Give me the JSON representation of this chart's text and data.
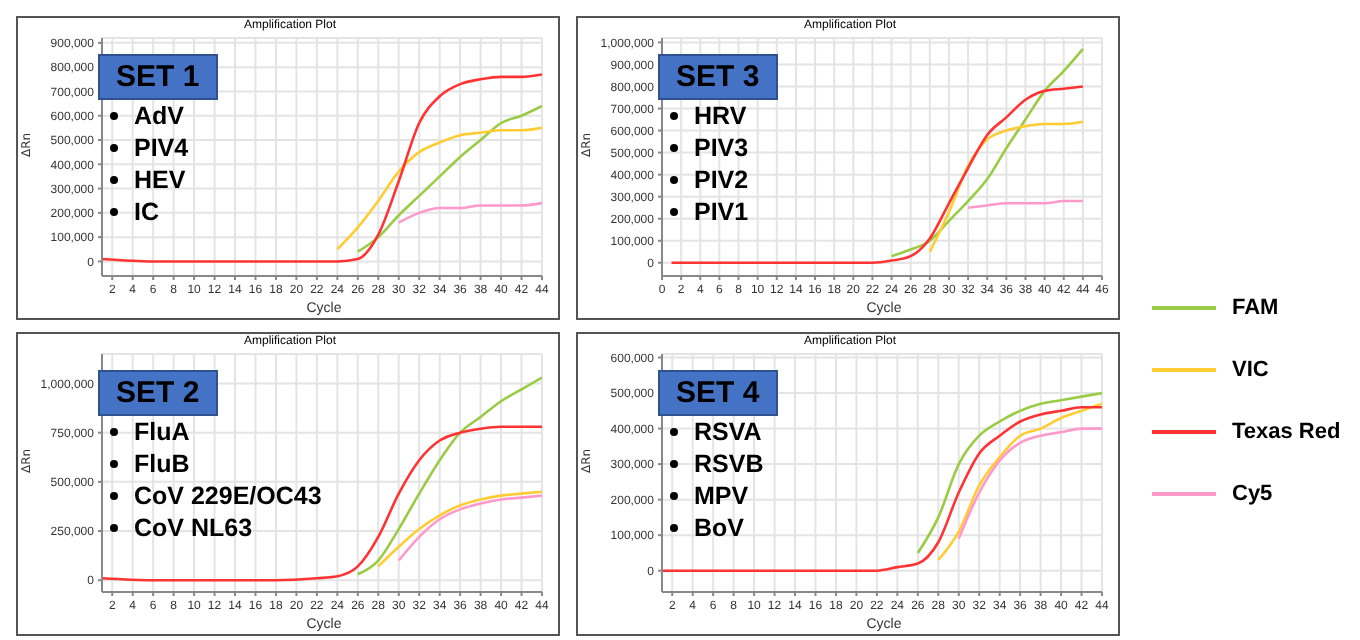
{
  "chart_data": [
    {
      "type": "line",
      "title": "Amplification Plot",
      "xlabel": "Cycle",
      "ylabel": "ΔRn",
      "annotations": [
        "SET 1",
        "AdV",
        "PIV4",
        "HEV",
        "IC"
      ],
      "x": [
        1,
        6,
        12,
        18,
        22,
        24,
        26,
        28,
        30,
        32,
        34,
        36,
        38,
        40,
        42,
        44
      ],
      "xlim": [
        1,
        44
      ],
      "xticks": [
        2,
        4,
        6,
        8,
        10,
        12,
        14,
        16,
        18,
        20,
        22,
        24,
        26,
        28,
        30,
        32,
        34,
        36,
        38,
        40,
        42,
        44
      ],
      "ylim": [
        -60000,
        920000
      ],
      "yticks": [
        {
          "value": 0,
          "label": "0"
        },
        {
          "value": 100000,
          "label": "100,000"
        },
        {
          "value": 200000,
          "label": "200,000"
        },
        {
          "value": 300000,
          "label": "300,000"
        },
        {
          "value": 400000,
          "label": "400,000"
        },
        {
          "value": 500000,
          "label": "500,000"
        },
        {
          "value": 600000,
          "label": "600,000"
        },
        {
          "value": 700000,
          "label": "700,000"
        },
        {
          "value": 800000,
          "label": "800,000"
        },
        {
          "value": 900000,
          "label": "900,000"
        }
      ],
      "grid": true,
      "legend": "right",
      "marker": "none",
      "line_style": "solid",
      "series": [
        {
          "name": "FAM",
          "color": "#99cc44",
          "values": [
            null,
            null,
            null,
            null,
            null,
            null,
            40000,
            100000,
            190000,
            270000,
            350000,
            430000,
            500000,
            570000,
            600000,
            640000
          ]
        },
        {
          "name": "VIC",
          "color": "#ffcc33",
          "values": [
            null,
            null,
            null,
            null,
            null,
            50000,
            140000,
            250000,
            370000,
            450000,
            490000,
            520000,
            530000,
            540000,
            540000,
            550000
          ]
        },
        {
          "name": "Texas Red",
          "color": "#ff3333",
          "values": [
            10000,
            0,
            0,
            0,
            0,
            0,
            10000,
            110000,
            330000,
            570000,
            680000,
            730000,
            750000,
            760000,
            760000,
            770000
          ]
        },
        {
          "name": "Cy5",
          "color": "#ff99cc",
          "values": [
            null,
            null,
            null,
            null,
            null,
            null,
            null,
            null,
            160000,
            200000,
            220000,
            220000,
            230000,
            230000,
            230000,
            240000
          ]
        }
      ]
    },
    {
      "type": "line",
      "title": "Amplification Plot",
      "xlabel": "Cycle",
      "ylabel": "ΔRn",
      "annotations": [
        "SET 3",
        "HRV",
        "PIV3",
        "PIV2",
        "PIV1"
      ],
      "x": [
        1,
        6,
        12,
        18,
        22,
        24,
        26,
        28,
        30,
        32,
        34,
        36,
        38,
        40,
        42,
        44
      ],
      "xlim": [
        0,
        46
      ],
      "xticks": [
        0,
        2,
        4,
        6,
        8,
        10,
        12,
        14,
        16,
        18,
        20,
        22,
        24,
        26,
        28,
        30,
        32,
        34,
        36,
        38,
        40,
        42,
        44,
        46
      ],
      "ylim": [
        -60000,
        1020000
      ],
      "yticks": [
        {
          "value": 0,
          "label": "0"
        },
        {
          "value": 100000,
          "label": "100,000"
        },
        {
          "value": 200000,
          "label": "200,000"
        },
        {
          "value": 300000,
          "label": "300,000"
        },
        {
          "value": 400000,
          "label": "400,000"
        },
        {
          "value": 500000,
          "label": "500,000"
        },
        {
          "value": 600000,
          "label": "600,000"
        },
        {
          "value": 700000,
          "label": "700,000"
        },
        {
          "value": 800000,
          "label": "800,000"
        },
        {
          "value": 900000,
          "label": "900,000"
        },
        {
          "value": 1000000,
          "label": "1,000,000"
        }
      ],
      "grid": true,
      "marker": "none",
      "line_style": "solid",
      "series": [
        {
          "name": "FAM",
          "color": "#99cc44",
          "values": [
            null,
            null,
            null,
            null,
            null,
            30000,
            60000,
            100000,
            190000,
            280000,
            380000,
            520000,
            650000,
            780000,
            870000,
            970000
          ]
        },
        {
          "name": "VIC",
          "color": "#ffcc33",
          "values": [
            null,
            null,
            null,
            null,
            null,
            null,
            null,
            50000,
            230000,
            440000,
            560000,
            600000,
            620000,
            630000,
            630000,
            640000
          ]
        },
        {
          "name": "Texas Red",
          "color": "#ff3333",
          "values": [
            0,
            0,
            0,
            0,
            0,
            10000,
            30000,
            110000,
            270000,
            430000,
            580000,
            660000,
            740000,
            780000,
            790000,
            800000
          ]
        },
        {
          "name": "Cy5",
          "color": "#ff99cc",
          "values": [
            null,
            null,
            null,
            null,
            null,
            null,
            null,
            null,
            null,
            250000,
            260000,
            270000,
            270000,
            270000,
            280000,
            280000
          ]
        }
      ]
    },
    {
      "type": "line",
      "title": "Amplification Plot",
      "xlabel": "Cycle",
      "ylabel": "ΔRn",
      "annotations": [
        "SET 2",
        "FluA",
        "FluB",
        "CoV 229E/OC43",
        "CoV NL63"
      ],
      "x": [
        1,
        6,
        12,
        18,
        22,
        24,
        26,
        28,
        30,
        32,
        34,
        36,
        38,
        40,
        42,
        44
      ],
      "xlim": [
        1,
        44
      ],
      "xticks": [
        2,
        4,
        6,
        8,
        10,
        12,
        14,
        16,
        18,
        20,
        22,
        24,
        26,
        28,
        30,
        32,
        34,
        36,
        38,
        40,
        42,
        44
      ],
      "ylim": [
        -60000,
        1150000
      ],
      "yticks": [
        {
          "value": 0,
          "label": "0"
        },
        {
          "value": 250000,
          "label": "250,000"
        },
        {
          "value": 500000,
          "label": "500,000"
        },
        {
          "value": 750000,
          "label": "750,000"
        },
        {
          "value": 1000000,
          "label": "1,000,000"
        }
      ],
      "grid": true,
      "marker": "none",
      "line_style": "solid",
      "series": [
        {
          "name": "FAM",
          "color": "#99cc44",
          "values": [
            null,
            null,
            null,
            null,
            null,
            null,
            30000,
            100000,
            260000,
            440000,
            610000,
            750000,
            830000,
            910000,
            970000,
            1030000
          ]
        },
        {
          "name": "VIC",
          "color": "#ffcc33",
          "values": [
            null,
            null,
            null,
            null,
            null,
            null,
            null,
            70000,
            170000,
            260000,
            330000,
            380000,
            410000,
            430000,
            440000,
            450000
          ]
        },
        {
          "name": "Texas Red",
          "color": "#ff3333",
          "values": [
            10000,
            0,
            0,
            0,
            10000,
            20000,
            70000,
            220000,
            440000,
            610000,
            710000,
            750000,
            770000,
            780000,
            780000,
            780000
          ]
        },
        {
          "name": "Cy5",
          "color": "#ff99cc",
          "values": [
            null,
            null,
            null,
            null,
            null,
            null,
            null,
            null,
            100000,
            220000,
            310000,
            360000,
            390000,
            410000,
            420000,
            430000
          ]
        }
      ]
    },
    {
      "type": "line",
      "title": "Amplification Plot",
      "xlabel": "Cycle",
      "ylabel": "ΔRn",
      "annotations": [
        "SET 4",
        "RSVA",
        "RSVB",
        "MPV",
        "BoV"
      ],
      "x": [
        1,
        6,
        12,
        18,
        22,
        24,
        26,
        28,
        30,
        32,
        34,
        36,
        38,
        40,
        42,
        44
      ],
      "xlim": [
        1,
        44
      ],
      "xticks": [
        2,
        4,
        6,
        8,
        10,
        12,
        14,
        16,
        18,
        20,
        22,
        24,
        26,
        28,
        30,
        32,
        34,
        36,
        38,
        40,
        42,
        44
      ],
      "ylim": [
        -60000,
        610000
      ],
      "yticks": [
        {
          "value": 0,
          "label": "0"
        },
        {
          "value": 100000,
          "label": "100,000"
        },
        {
          "value": 200000,
          "label": "200,000"
        },
        {
          "value": 300000,
          "label": "300,000"
        },
        {
          "value": 400000,
          "label": "400,000"
        },
        {
          "value": 500000,
          "label": "500,000"
        },
        {
          "value": 600000,
          "label": "600,000"
        }
      ],
      "grid": true,
      "marker": "none",
      "line_style": "solid",
      "series": [
        {
          "name": "FAM",
          "color": "#99cc44",
          "values": [
            null,
            null,
            null,
            null,
            null,
            null,
            50000,
            150000,
            300000,
            380000,
            420000,
            450000,
            470000,
            480000,
            490000,
            500000
          ]
        },
        {
          "name": "VIC",
          "color": "#ffcc33",
          "values": [
            null,
            null,
            null,
            null,
            null,
            null,
            null,
            30000,
            110000,
            240000,
            320000,
            380000,
            400000,
            430000,
            450000,
            470000
          ]
        },
        {
          "name": "Texas Red",
          "color": "#ff3333",
          "values": [
            0,
            0,
            0,
            0,
            0,
            10000,
            20000,
            80000,
            220000,
            330000,
            380000,
            420000,
            440000,
            450000,
            460000,
            460000
          ]
        },
        {
          "name": "Cy5",
          "color": "#ff99cc",
          "values": [
            null,
            null,
            null,
            null,
            null,
            null,
            null,
            null,
            90000,
            220000,
            310000,
            360000,
            380000,
            390000,
            400000,
            400000
          ]
        }
      ]
    }
  ]
}
